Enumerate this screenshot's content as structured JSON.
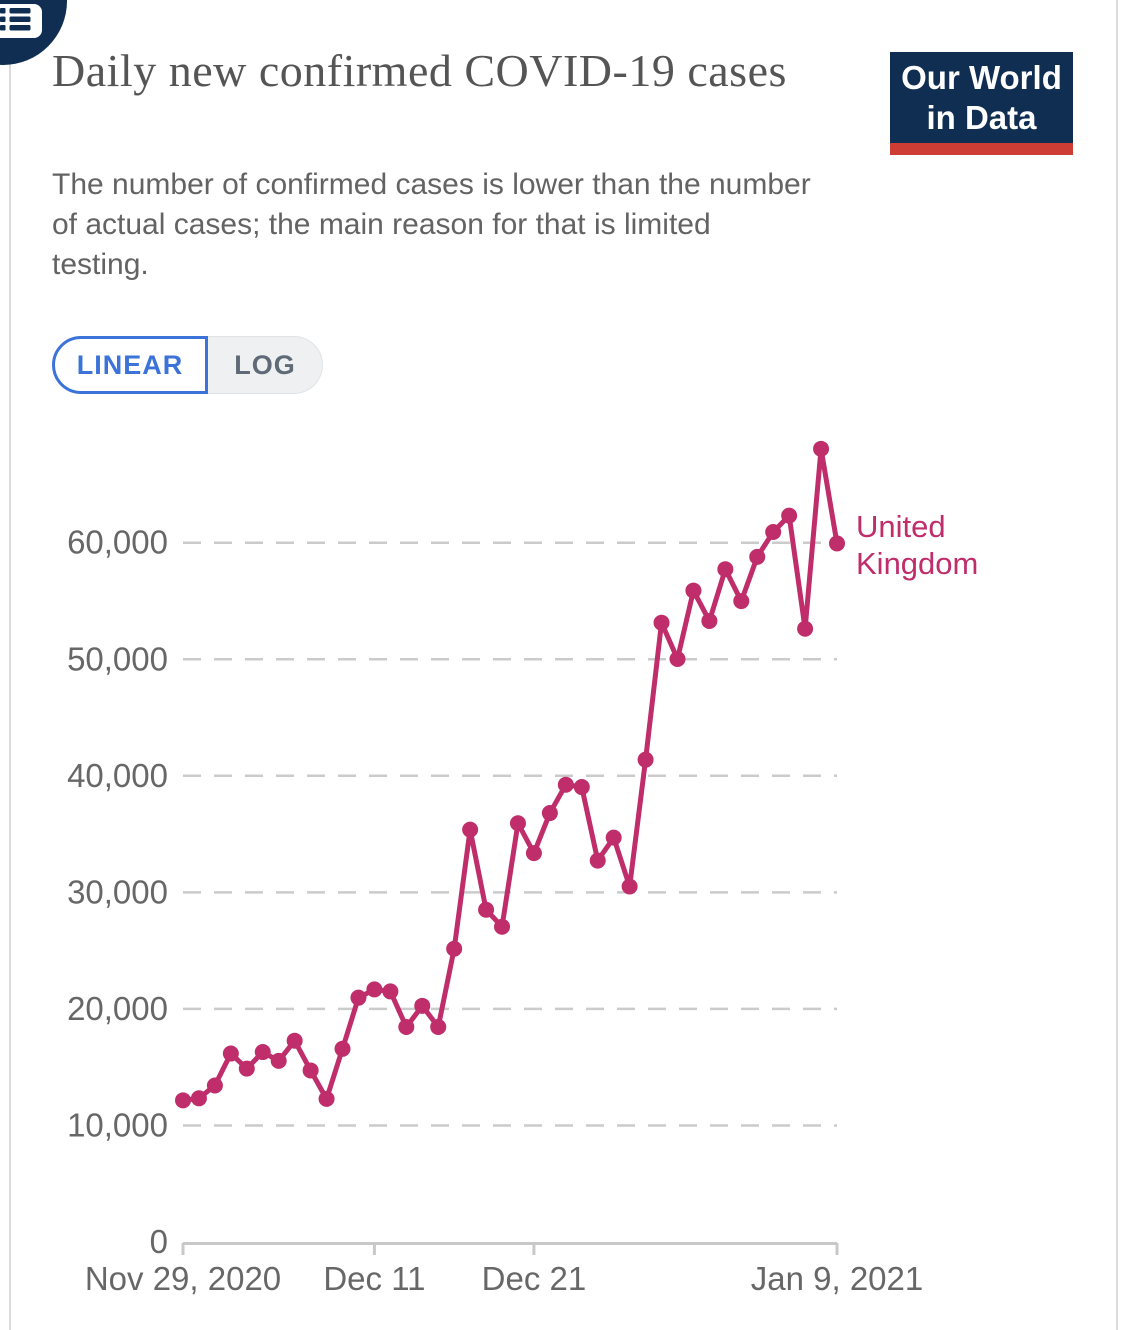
{
  "header": {
    "title": "Daily new confirmed COVID-19 cases",
    "subtitle": "The number of confirmed cases is lower than the number of actual cases; the main reason for that is limited testing.",
    "logo": {
      "line1": "Our World",
      "line2": "in Data"
    }
  },
  "icons": {
    "menu": "list-menu-icon"
  },
  "controls": {
    "linear_label": "LINEAR",
    "log_label": "LOG",
    "selected": "LINEAR"
  },
  "colors": {
    "navy": "#0f2e52",
    "logo_red": "#cd3d33",
    "accent_blue": "#3b73d8",
    "log_button_bg": "#eef0f2",
    "log_button_text": "#5e6a77",
    "series": "#bf2d6b",
    "grid": "#cbcbcb",
    "axis": "#c8c8c8",
    "tick_text": "#676767",
    "title_text": "#555555",
    "subtitle_text": "#636363"
  },
  "chart_data": {
    "type": "line",
    "title": "Daily new confirmed COVID-19 cases",
    "xlabel": "",
    "ylabel": "",
    "grid": "horizontal-dashed",
    "legend_position": "end-of-line-label",
    "ylim": [
      0,
      70000
    ],
    "y_ticks": [
      0,
      10000,
      20000,
      30000,
      40000,
      50000,
      60000
    ],
    "y_tick_labels": [
      "0",
      "10,000",
      "20,000",
      "30,000",
      "40,000",
      "50,000",
      "60,000"
    ],
    "x_ticks": [
      {
        "day": 0,
        "label": "Nov 29, 2020"
      },
      {
        "day": 12,
        "label": "Dec 11"
      },
      {
        "day": 22,
        "label": "Dec 21"
      },
      {
        "day": 41,
        "label": "Jan 9, 2021"
      }
    ],
    "series": [
      {
        "name": "United Kingdom",
        "color": "#bf2d6b",
        "start_date": "2020-11-29",
        "end_date": "2021-01-09",
        "values": [
          12155,
          12330,
          13430,
          16170,
          14879,
          16298,
          15539,
          17271,
          14718,
          12282,
          16578,
          20964,
          21672,
          21501,
          18447,
          20263,
          18450,
          25161,
          35383,
          28507,
          27052,
          35928,
          33364,
          36804,
          39237,
          39036,
          32725,
          34693,
          30501,
          41385,
          53135,
          50023,
          55892,
          53285,
          57725,
          54990,
          58784,
          60916,
          62322,
          52618,
          68053,
          59937
        ]
      }
    ]
  }
}
